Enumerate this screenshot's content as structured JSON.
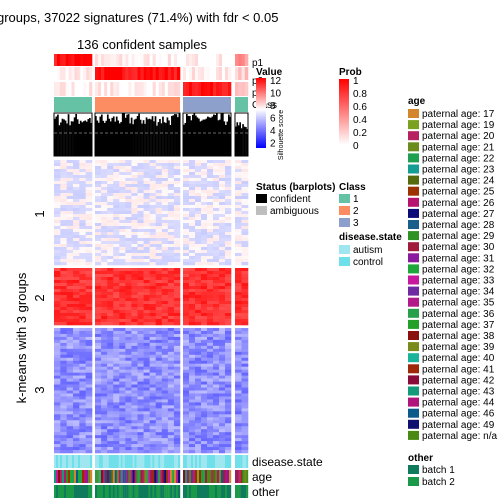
{
  "chart_data": {
    "type": "heatmap",
    "title": "groups, 37022 signatures (71.4%) with fdr < 0.05",
    "subtitle": "136 confident samples",
    "row_title": "k-means with 3 groups",
    "row_groups": [
      "1",
      "2",
      "3"
    ],
    "column_groups": 4,
    "top_tracks": [
      "p1",
      "p2",
      "p3",
      "Class",
      "Silhouette score"
    ],
    "bottom_tracks": [
      "disease.state",
      "age",
      "other"
    ],
    "legends": {
      "value": {
        "title": "Value",
        "ticks": [
          "12",
          "10",
          "8",
          "6",
          "4",
          "2"
        ],
        "colors": [
          "#ff0000",
          "#ffffff",
          "#0000ff"
        ]
      },
      "prob": {
        "title": "Prob",
        "ticks": [
          "1",
          "0.8",
          "0.6",
          "0.4",
          "0.2",
          "0"
        ],
        "colors": [
          "#ff0000",
          "#ffffff"
        ]
      },
      "status": {
        "title": "Status (barplots)",
        "items": [
          {
            "label": "confident",
            "color": "#000000"
          },
          {
            "label": "ambiguous",
            "color": "#bebebe"
          }
        ]
      },
      "class": {
        "title": "Class",
        "items": [
          {
            "label": "1",
            "color": "#66c2a5"
          },
          {
            "label": "2",
            "color": "#fc8d62"
          },
          {
            "label": "3",
            "color": "#8da0cb"
          }
        ]
      },
      "disease_state": {
        "title": "disease.state",
        "items": [
          {
            "label": "autism",
            "color": "#9ee7f1"
          },
          {
            "label": "control",
            "color": "#6fe0ea"
          }
        ]
      },
      "age": {
        "title": "age",
        "items": [
          {
            "label": "paternal age: 17",
            "color": "#d4862c"
          },
          {
            "label": "paternal age: 19",
            "color": "#7aa11f"
          },
          {
            "label": "paternal age: 20",
            "color": "#b42262"
          },
          {
            "label": "paternal age: 21",
            "color": "#6b8c1c"
          },
          {
            "label": "paternal age: 22",
            "color": "#1f9f50"
          },
          {
            "label": "paternal age: 23",
            "color": "#149e93"
          },
          {
            "label": "paternal age: 24",
            "color": "#566b0c"
          },
          {
            "label": "paternal age: 25",
            "color": "#9b3200"
          },
          {
            "label": "paternal age: 26",
            "color": "#b81270"
          },
          {
            "label": "paternal age: 27",
            "color": "#0a0a78"
          },
          {
            "label": "paternal age: 28",
            "color": "#1a5e8a"
          },
          {
            "label": "paternal age: 29",
            "color": "#2e9222"
          },
          {
            "label": "paternal age: 30",
            "color": "#a01a3c"
          },
          {
            "label": "paternal age: 31",
            "color": "#8a1a9e"
          },
          {
            "label": "paternal age: 32",
            "color": "#1ea83c"
          },
          {
            "label": "paternal age: 33",
            "color": "#c8189e"
          },
          {
            "label": "paternal age: 34",
            "color": "#6e2aa0"
          },
          {
            "label": "paternal age: 35",
            "color": "#b21a8a"
          },
          {
            "label": "paternal age: 36",
            "color": "#28a04a"
          },
          {
            "label": "paternal age: 37",
            "color": "#22a02a"
          },
          {
            "label": "paternal age: 38",
            "color": "#8a1010"
          },
          {
            "label": "paternal age: 39",
            "color": "#7a8a1a"
          },
          {
            "label": "paternal age: 40",
            "color": "#1ab49a"
          },
          {
            "label": "paternal age: 41",
            "color": "#a0280a"
          },
          {
            "label": "paternal age: 42",
            "color": "#8a0a3a"
          },
          {
            "label": "paternal age: 43",
            "color": "#129a7a"
          },
          {
            "label": "paternal age: 44",
            "color": "#b0147a"
          },
          {
            "label": "paternal age: 46",
            "color": "#0a5a8a"
          },
          {
            "label": "paternal age: 49",
            "color": "#10106e"
          },
          {
            "label": "paternal age: n/a",
            "color": "#4a8a12"
          }
        ]
      },
      "other": {
        "title": "other",
        "items": [
          {
            "label": "batch 1",
            "color": "#0f7a5c"
          },
          {
            "label": "batch 2",
            "color": "#1a9a48"
          }
        ]
      }
    }
  }
}
